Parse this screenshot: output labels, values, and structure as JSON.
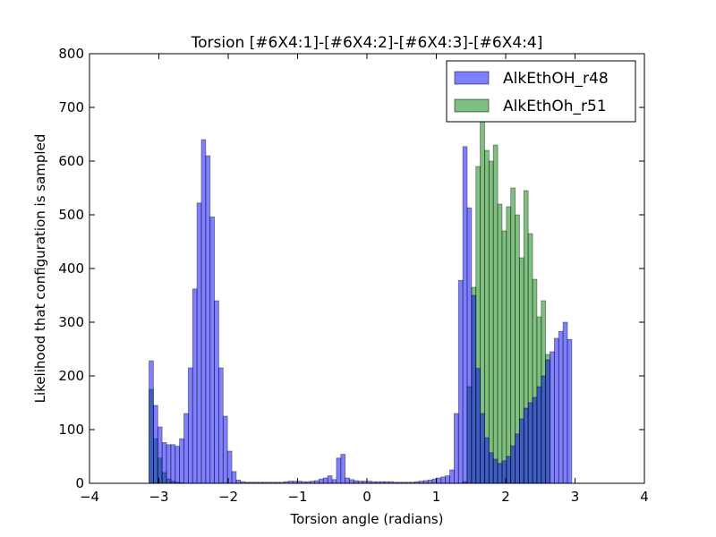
{
  "chart_data": {
    "type": "bar",
    "title": "Torsion [#6X4:1]-[#6X4:2]-[#6X4:3]-[#6X4:4]",
    "xlabel": "Torsion angle (radians)",
    "ylabel": "Likelihood that configuration is sampled",
    "xlim": [
      -4,
      4
    ],
    "ylim": [
      0,
      800
    ],
    "xticks": [
      "−4",
      "−3",
      "−2",
      "−1",
      "0",
      "1",
      "2",
      "3",
      "4"
    ],
    "yticks": [
      "0",
      "100",
      "200",
      "300",
      "400",
      "500",
      "600",
      "700",
      "800"
    ],
    "grid": false,
    "legend_position": "top-right",
    "bin_start": -3.1416,
    "bin_width": 0.06283,
    "series": [
      {
        "name": "AlkEthOH_r48",
        "color": "#0000ff",
        "values": [
          228,
          145,
          105,
          76,
          72,
          72,
          69,
          83,
          130,
          215,
          362,
          522,
          640,
          610,
          496,
          340,
          215,
          125,
          60,
          22,
          6,
          3,
          2,
          2,
          2,
          2,
          2,
          2,
          2,
          2,
          2,
          3,
          4,
          4,
          4,
          3,
          3,
          4,
          5,
          8,
          10,
          14,
          7,
          47,
          54,
          10,
          7,
          5,
          4,
          4,
          4,
          3,
          3,
          3,
          3,
          3,
          2,
          2,
          2,
          2,
          2,
          3,
          4,
          5,
          6,
          8,
          10,
          12,
          14,
          25,
          130,
          378,
          627,
          513,
          350,
          214,
          130,
          85,
          57,
          45,
          37,
          42,
          50,
          70,
          92,
          120,
          140,
          150,
          160,
          180,
          200,
          230,
          245,
          270,
          283,
          300,
          268
        ]
      },
      {
        "name": "AlkEthOh_r51",
        "color": "#008000",
        "values": [
          175,
          83,
          47,
          20,
          8,
          4,
          2,
          1,
          0,
          0,
          0,
          0,
          0,
          0,
          0,
          0,
          0,
          0,
          0,
          0,
          0,
          0,
          0,
          0,
          0,
          0,
          0,
          0,
          0,
          0,
          0,
          0,
          0,
          0,
          0,
          0,
          0,
          0,
          0,
          0,
          0,
          0,
          0,
          0,
          0,
          0,
          0,
          0,
          0,
          0,
          0,
          0,
          0,
          0,
          0,
          0,
          0,
          0,
          0,
          0,
          0,
          0,
          0,
          0,
          0,
          0,
          0,
          0,
          0,
          0,
          0,
          0,
          3,
          180,
          365,
          590,
          680,
          620,
          600,
          630,
          520,
          470,
          515,
          550,
          500,
          420,
          545,
          465,
          380,
          310,
          340,
          240,
          0,
          0,
          0,
          0,
          0
        ]
      }
    ]
  }
}
